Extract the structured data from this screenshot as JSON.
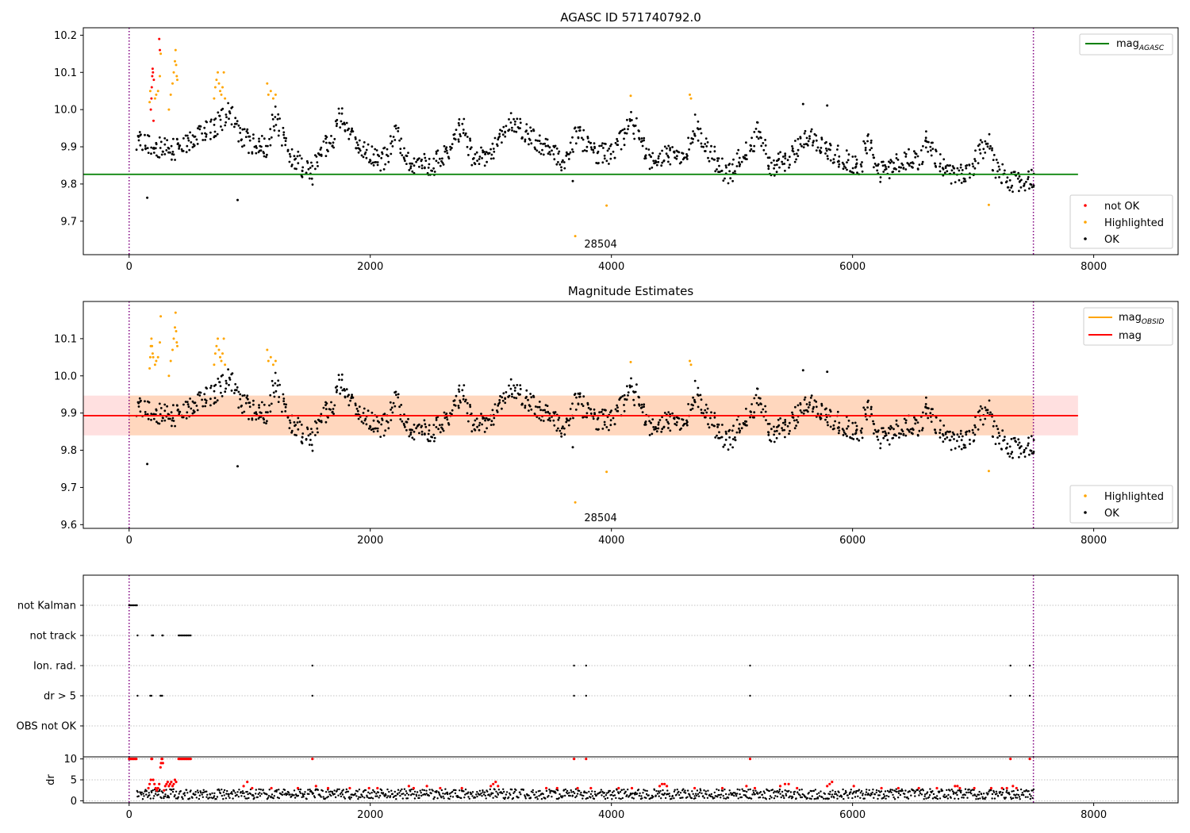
{
  "chart_data": [
    {
      "type": "scatter",
      "title": "AGASC ID 571740792.0",
      "xlim": [
        -380,
        8700
      ],
      "ylim": [
        9.61,
        10.22
      ],
      "xticks": [
        0,
        2000,
        4000,
        6000,
        8000
      ],
      "yticks": [
        9.7,
        9.8,
        9.9,
        10.0,
        10.1,
        10.2
      ],
      "xtick_labels": [
        "0",
        "2000",
        "4000",
        "6000",
        "8000"
      ],
      "ytick_labels": [
        "9.7",
        "9.8",
        "9.9",
        "10.0",
        "10.1",
        "10.2"
      ],
      "vlines": [
        0,
        7500
      ],
      "reference_line": {
        "name": "mag_AGASC",
        "value": 9.826,
        "x_range": [
          -380,
          7870
        ],
        "color": "#008000"
      },
      "annotation": {
        "text": "28504",
        "x": 3700
      },
      "legend_lines": [
        {
          "label": "mag",
          "sub": "AGASC",
          "color": "#008000"
        }
      ],
      "legend_points": [
        {
          "label": "not OK",
          "color": "#ff0000"
        },
        {
          "label": "Highlighted",
          "color": "#ffa500"
        },
        {
          "label": "OK",
          "color": "#000000"
        }
      ],
      "series": [
        {
          "name": "not OK",
          "color": "#ff0000",
          "x": [
            180,
            185,
            188,
            192,
            195,
            198,
            202,
            205,
            250,
            255
          ],
          "y": [
            10.0,
            10.03,
            10.06,
            10.09,
            10.11,
            10.1,
            9.97,
            10.08,
            10.19,
            10.16
          ]
        },
        {
          "name": "Highlighted",
          "color": "#ffa500",
          "x": [
            170,
            175,
            215,
            225,
            240,
            255,
            262,
            330,
            345,
            360,
            370,
            380,
            385,
            390,
            395,
            400,
            705,
            715,
            725,
            735,
            745,
            755,
            765,
            775,
            785,
            795,
            1145,
            1155,
            1175,
            1195,
            1215,
            3700,
            3960,
            4160,
            4650,
            4660,
            7130
          ],
          "y": [
            10.02,
            10.05,
            10.03,
            10.04,
            10.05,
            10.09,
            10.15,
            10.0,
            10.04,
            10.07,
            10.1,
            10.13,
            10.16,
            10.12,
            10.09,
            10.08,
            10.03,
            10.06,
            10.08,
            10.1,
            10.07,
            10.05,
            10.04,
            10.06,
            10.1,
            10.03,
            10.07,
            10.04,
            10.05,
            10.03,
            10.04,
            9.66,
            9.742,
            10.037,
            10.04,
            10.03,
            9.744
          ]
        },
        {
          "name": "OK",
          "color": "#000000",
          "x": [
            150,
            900,
            3680,
            5590,
            5790
          ],
          "y": [
            9.763,
            9.757,
            9.808,
            10.015,
            10.011
          ]
        }
      ],
      "ok_series_envelope": {
        "name": "OK",
        "color": "#000000",
        "x_range": [
          60,
          7500
        ],
        "x_step": 25,
        "baseline_knots": [
          [
            60,
            9.92
          ],
          [
            150,
            9.91
          ],
          [
            350,
            9.89
          ],
          [
            450,
            9.91
          ],
          [
            700,
            9.95
          ],
          [
            820,
            10.0
          ],
          [
            900,
            9.93
          ],
          [
            1000,
            9.91
          ],
          [
            1150,
            9.9
          ],
          [
            1200,
            10.0
          ],
          [
            1300,
            9.88
          ],
          [
            1450,
            9.84
          ],
          [
            1500,
            9.82
          ],
          [
            1600,
            9.9
          ],
          [
            1700,
            9.93
          ],
          [
            1750,
            10.0
          ],
          [
            1850,
            9.91
          ],
          [
            2000,
            9.88
          ],
          [
            2100,
            9.86
          ],
          [
            2200,
            9.94
          ],
          [
            2300,
            9.86
          ],
          [
            2500,
            9.85
          ],
          [
            2650,
            9.9
          ],
          [
            2750,
            9.96
          ],
          [
            2850,
            9.86
          ],
          [
            3000,
            9.88
          ],
          [
            3150,
            9.97
          ],
          [
            3300,
            9.93
          ],
          [
            3500,
            9.88
          ],
          [
            3600,
            9.86
          ],
          [
            3700,
            9.94
          ],
          [
            3850,
            9.88
          ],
          [
            4000,
            9.88
          ],
          [
            4150,
            9.97
          ],
          [
            4300,
            9.87
          ],
          [
            4500,
            9.88
          ],
          [
            4600,
            9.86
          ],
          [
            4680,
            9.96
          ],
          [
            4800,
            9.89
          ],
          [
            4950,
            9.82
          ],
          [
            5050,
            9.87
          ],
          [
            5150,
            9.9
          ],
          [
            5200,
            9.96
          ],
          [
            5300,
            9.85
          ],
          [
            5450,
            9.86
          ],
          [
            5600,
            9.93
          ],
          [
            5750,
            9.9
          ],
          [
            5900,
            9.87
          ],
          [
            6050,
            9.84
          ],
          [
            6100,
            9.92
          ],
          [
            6200,
            9.83
          ],
          [
            6400,
            9.86
          ],
          [
            6550,
            9.87
          ],
          [
            6600,
            9.92
          ],
          [
            6750,
            9.83
          ],
          [
            6950,
            9.82
          ],
          [
            7100,
            9.92
          ],
          [
            7200,
            9.83
          ],
          [
            7350,
            9.8
          ],
          [
            7500,
            9.82
          ]
        ],
        "spread": 0.05
      }
    },
    {
      "type": "scatter",
      "title": "Magnitude Estimates",
      "xlim": [
        -380,
        8700
      ],
      "ylim": [
        9.59,
        10.2
      ],
      "xticks": [
        0,
        2000,
        4000,
        6000,
        8000
      ],
      "yticks": [
        9.6,
        9.7,
        9.8,
        9.9,
        10.0,
        10.1
      ],
      "xtick_labels": [
        "0",
        "2000",
        "4000",
        "6000",
        "8000"
      ],
      "ytick_labels": [
        "9.6",
        "9.7",
        "9.8",
        "9.9",
        "10.0",
        "10.1"
      ],
      "vlines": [
        0,
        7500
      ],
      "mean_line": {
        "name": "mag",
        "value": 9.893,
        "x_range": [
          -380,
          7870
        ],
        "color": "#ff0000"
      },
      "mean_band": {
        "lower": 9.84,
        "upper": 9.947,
        "color": "#ff0000"
      },
      "obsid_band": {
        "lower": 9.84,
        "upper": 9.947,
        "x_range": [
          0,
          7500
        ],
        "color": "#ffa500"
      },
      "obsid_line": {
        "name": "mag_OBSID",
        "value": 9.893,
        "x_range": [
          0,
          7500
        ],
        "color": "#ffa500"
      },
      "annotation": {
        "text": "28504",
        "x": 3700
      },
      "legend_lines": [
        {
          "label": "mag",
          "sub": "OBSID",
          "color": "#ffa500"
        },
        {
          "label": "mag",
          "sub": "",
          "color": "#ff0000"
        }
      ],
      "legend_points": [
        {
          "label": "Highlighted",
          "color": "#ffa500"
        },
        {
          "label": "OK",
          "color": "#000000"
        }
      ],
      "series": [
        {
          "name": "Highlighted",
          "color": "#ffa500",
          "x": [
            170,
            175,
            180,
            185,
            190,
            195,
            200,
            215,
            225,
            240,
            255,
            262,
            330,
            345,
            360,
            370,
            380,
            385,
            390,
            395,
            400,
            705,
            715,
            725,
            735,
            745,
            755,
            765,
            775,
            785,
            795,
            1145,
            1155,
            1175,
            1195,
            1215,
            3700,
            3960,
            4160,
            4650,
            4660,
            7130
          ],
          "y": [
            10.02,
            10.05,
            10.08,
            10.1,
            10.08,
            10.06,
            10.05,
            10.03,
            10.04,
            10.05,
            10.09,
            10.16,
            10.0,
            10.04,
            10.07,
            10.1,
            10.13,
            10.17,
            10.12,
            10.09,
            10.08,
            10.03,
            10.06,
            10.08,
            10.1,
            10.07,
            10.05,
            10.04,
            10.06,
            10.1,
            10.03,
            10.07,
            10.04,
            10.05,
            10.03,
            10.04,
            9.66,
            9.742,
            10.037,
            10.04,
            10.03,
            9.744
          ]
        },
        {
          "name": "OK",
          "color": "#000000",
          "x": [
            150,
            900,
            3680,
            5590,
            5790
          ],
          "y": [
            9.763,
            9.757,
            9.808,
            10.015,
            10.011
          ]
        }
      ]
    },
    {
      "type": "scatter",
      "title": "",
      "xlim": [
        -380,
        8700
      ],
      "xticks": [
        0,
        2000,
        4000,
        6000,
        8000
      ],
      "xtick_labels": [
        "0",
        "2000",
        "4000",
        "6000",
        "8000"
      ],
      "vlines": [
        0,
        7500
      ],
      "flag_categories": [
        "not Kalman",
        "not track",
        "Ion. rad.",
        "dr > 5",
        "OBS not OK"
      ],
      "flags": [
        {
          "category": "not Kalman",
          "x": [
            0,
            10,
            20,
            30,
            40,
            50,
            60,
            65
          ]
        },
        {
          "category": "not track",
          "x": [
            70,
            190,
            200,
            275,
            280,
            410,
            420,
            430,
            440,
            450,
            460,
            470,
            480,
            490,
            500,
            510
          ]
        },
        {
          "category": "Ion. rad.",
          "x": [
            1520,
            3690,
            3790,
            5150,
            7310,
            7470
          ]
        },
        {
          "category": "dr > 5",
          "x": [
            70,
            175,
            185,
            260,
            265,
            275,
            1520,
            3690,
            3790,
            5150,
            7310,
            7470
          ]
        },
        {
          "category": "OBS not OK",
          "x": []
        }
      ],
      "dr_panel": {
        "ylabel": "dr",
        "ylim": [
          -0.5,
          10.5
        ],
        "yticks": [
          0,
          5,
          10
        ],
        "ytick_labels": [
          "0",
          "5",
          "10"
        ],
        "series": [
          {
            "name": "dr > 5",
            "color": "#ff0000",
            "x": [
              0,
              10,
              20,
              30,
              40,
              50,
              60,
              185,
              190,
              260,
              265,
              270,
              275,
              280,
              410,
              420,
              430,
              440,
              450,
              460,
              470,
              480,
              490,
              500,
              510,
              1520,
              3690,
              3790,
              5150,
              7310,
              7470
            ],
            "y": [
              10,
              10,
              10,
              10,
              10,
              10,
              10,
              10,
              10,
              8,
              9,
              10,
              10,
              9,
              10,
              10,
              10,
              10,
              10,
              10,
              10,
              10,
              10,
              10,
              10,
              10,
              10,
              10,
              10,
              10,
              10
            ]
          },
          {
            "name": "dr elevated",
            "color": "#ff0000",
            "x": [
              160,
              170,
              180,
              200,
              210,
              220,
              230,
              240,
              250,
              290,
              300,
              310,
              320,
              330,
              340,
              350,
              360,
              370,
              380,
              390,
              950,
              980,
              1020,
              1180,
              1400,
              1550,
              1650,
              1830,
              1990,
              2060,
              2320,
              2360,
              2470,
              2580,
              2760,
              3000,
              3020,
              3040,
              3060,
              3460,
              3550,
              3720,
              3830,
              4060,
              4170,
              4400,
              4420,
              4440,
              4460,
              4690,
              4920,
              5120,
              5190,
              5400,
              5440,
              5470,
              5540,
              5790,
              5810,
              5830,
              6010,
              6240,
              6380,
              6550,
              6700,
              6850,
              6870,
              6890,
              7010,
              7150,
              7240,
              7280,
              7330,
              7360
            ],
            "y": [
              3,
              4,
              5,
              5,
              4,
              3,
              2.5,
              3,
              4,
              2.5,
              3.5,
              4,
              4.5,
              3.5,
              4,
              4.5,
              3.5,
              4,
              5,
              4.5,
              3.5,
              4.5,
              3,
              3,
              3,
              3.5,
              3,
              3,
              3,
              3,
              3.5,
              3,
              3.5,
              3,
              3,
              3.5,
              4,
              4.5,
              3.5,
              3,
              3,
              3,
              3,
              3,
              3,
              3.5,
              4,
              4,
              3.5,
              3,
              3,
              3.5,
              3,
              3.5,
              4,
              4,
              3,
              3.5,
              4,
              4.5,
              3.5,
              3,
              3,
              3,
              3,
              3.5,
              3.5,
              3,
              3,
              3,
              3,
              3,
              3.5,
              3
            ]
          },
          {
            "name": "dr",
            "color": "#000000",
            "x_range": [
              60,
              7500
            ],
            "mean": 1.6,
            "spread": 1.2
          }
        ]
      }
    }
  ]
}
